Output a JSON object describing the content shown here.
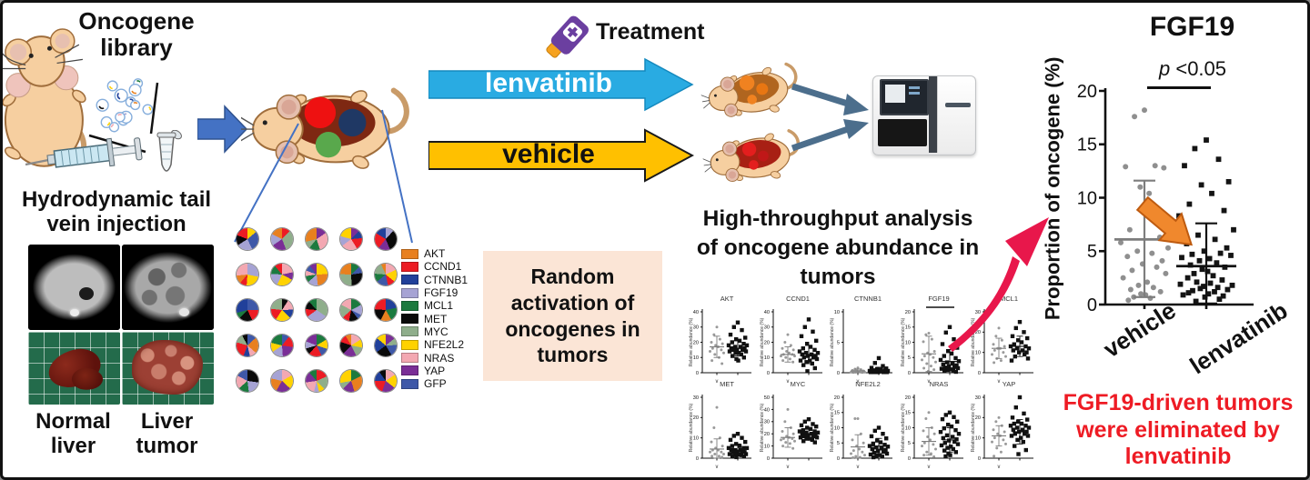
{
  "panel_left": {
    "oncogene_library": "Oncogene library",
    "hydrodynamic": "Hydrodynamic tail vein injection",
    "normal_liver": "Normal liver",
    "liver_tumor": "Liver tumor"
  },
  "treatment": {
    "label": "Treatment",
    "arm1": "lenvatinib",
    "arm2": "vehicle",
    "arm1_color": "#29ABE2",
    "arm2_color": "#FFC000"
  },
  "random_box": {
    "text": "Random activation of oncogenes in tumors"
  },
  "hta": {
    "text": "High-throughput analysis of oncogene abundance in tumors"
  },
  "conclusion": {
    "text": "FGF19-driven tumors were eliminated by lenvatinib",
    "color": "#EE1B24"
  },
  "legend": {
    "items": [
      {
        "label": "AKT",
        "color": "#E8801F"
      },
      {
        "label": "CCND1",
        "color": "#EC1C24"
      },
      {
        "label": "CTNNB1",
        "color": "#21409A"
      },
      {
        "label": "FGF19",
        "color": "#A6A3D4"
      },
      {
        "label": "MCL1",
        "color": "#1B7A3E"
      },
      {
        "label": "MET",
        "color": "#0A0A0A"
      },
      {
        "label": "MYC",
        "color": "#8FAE8B"
      },
      {
        "label": "NFE2L2",
        "color": "#FFD200"
      },
      {
        "label": "NRAS",
        "color": "#F3A8B2"
      },
      {
        "label": "YAP",
        "color": "#7A2E96"
      },
      {
        "label": "GFP",
        "color": "#3E58A8"
      }
    ]
  },
  "pie_grid": {
    "rows": 5,
    "cols": 5
  },
  "chart_data": [
    {
      "id": "fgf19_main",
      "type": "scatter",
      "title": "FGF19",
      "p_prefix": "p",
      "p_rest": " <0.05",
      "ylabel": "Proportion of oncogene (%)",
      "ylim": [
        0,
        20
      ],
      "yticks": [
        0,
        5,
        10,
        15,
        20
      ],
      "groups": [
        {
          "name": "vehicle",
          "marker": "circle",
          "color": "#8F8F8F",
          "mean": 6.1,
          "sd_high": 11.6,
          "sd_low": 0.7,
          "values": [
            18.2,
            17.6,
            13.0,
            12.9,
            12.8,
            11.0,
            10.4,
            7.0,
            6.3,
            5.8,
            5.3,
            5.0,
            4.8,
            4.5,
            4.1,
            3.8,
            3.5,
            3.2,
            2.9,
            2.5,
            2.1,
            1.8,
            1.6,
            1.4,
            1.2,
            1.0,
            0.9,
            0.7,
            0.6,
            0.4
          ]
        },
        {
          "name": "lenvatinib",
          "marker": "square",
          "color": "#141414",
          "mean": 3.6,
          "sd_high": 7.6,
          "sd_low": 0.1,
          "values": [
            15.4,
            14.6,
            13.6,
            13.0,
            11.5,
            11.2,
            10.4,
            9.4,
            8.8,
            8.3,
            7.0,
            6.5,
            6.1,
            5.7,
            5.3,
            5.0,
            4.8,
            4.7,
            4.6,
            4.4,
            4.3,
            4.1,
            3.9,
            3.7,
            3.5,
            3.3,
            3.1,
            2.9,
            2.7,
            2.5,
            2.3,
            2.1,
            2.0,
            1.9,
            1.8,
            1.7,
            1.6,
            1.5,
            1.4,
            1.3,
            1.2,
            1.1,
            1.0,
            0.9,
            0.8,
            0.7,
            0.5,
            0.3
          ]
        }
      ]
    },
    {
      "id": "oncogene_small_multiples",
      "type": "scatter_grid",
      "ylabel": "Relative abundance (%)",
      "group_names": [
        "vehicle",
        "lenvatinib"
      ],
      "plots": [
        {
          "name": "AKT",
          "ylim": [
            0,
            40
          ],
          "yticks": [
            0,
            10,
            20,
            30,
            40
          ],
          "vehicle": {
            "mean": 17,
            "sd": 7,
            "values": [
              30,
              25,
              22,
              20,
              19,
              18,
              17,
              16,
              15,
              14,
              13,
              12,
              10,
              8,
              6
            ]
          },
          "lenvatinib": {
            "mean": 16,
            "sd": 5,
            "values": [
              33,
              30,
              28,
              25,
              23,
              22,
              21,
              20,
              19,
              18,
              18,
              17,
              17,
              16,
              16,
              15,
              15,
              15,
              14,
              14,
              13,
              13,
              12,
              11,
              10,
              9,
              8
            ]
          }
        },
        {
          "name": "CCND1",
          "ylim": [
            0,
            40
          ],
          "yticks": [
            0,
            10,
            20,
            30,
            40
          ],
          "vehicle": {
            "mean": 12,
            "sd": 5,
            "values": [
              25,
              20,
              18,
              16,
              15,
              14,
              13,
              12,
              12,
              11,
              11,
              10,
              9,
              8,
              7
            ]
          },
          "lenvatinib": {
            "mean": 12,
            "sd": 6,
            "values": [
              35,
              30,
              27,
              24,
              21,
              19,
              17,
              16,
              15,
              14,
              13,
              13,
              12,
              12,
              11,
              11,
              10,
              10,
              9,
              8,
              8,
              7,
              6,
              5,
              3,
              1
            ]
          }
        },
        {
          "name": "CTNNB1",
          "ylim": [
            0,
            10
          ],
          "yticks": [
            0,
            5,
            10
          ],
          "vehicle": {
            "mean": 0.3,
            "sd": 0.3,
            "values": [
              0.8,
              0.6,
              0.5,
              0.4,
              0.3,
              0.3,
              0.2,
              0.2,
              0.2,
              0.1,
              0.1,
              0.1
            ]
          },
          "lenvatinib": {
            "mean": 0.4,
            "sd": 0.5,
            "values": [
              2.4,
              1.6,
              1.1,
              0.8,
              0.7,
              0.6,
              0.5,
              0.4,
              0.4,
              0.3,
              0.3,
              0.3,
              0.2,
              0.2,
              0.2,
              0.1,
              0.1,
              0.1,
              0.1,
              0.1
            ]
          }
        },
        {
          "name": "FGF19",
          "ylim": [
            0,
            20
          ],
          "yticks": [
            0,
            5,
            10,
            15,
            20
          ],
          "sig": true,
          "vehicle": {
            "mean": 6.2,
            "sd": 5.8,
            "values": [
              13,
              12.5,
              11,
              10.2,
              7,
              6.5,
              6,
              5.5,
              5,
              4.2,
              3.5,
              3,
              2.2,
              1.5,
              1,
              0.5
            ]
          },
          "lenvatinib": {
            "mean": 3.7,
            "sd": 3.9,
            "values": [
              15,
              13.2,
              11,
              9.4,
              8.2,
              7.1,
              6.3,
              5.5,
              4.8,
              4.2,
              3.8,
              3.4,
              3,
              2.7,
              2.4,
              2.1,
              1.9,
              1.7,
              1.5,
              1.3,
              1.1,
              0.9,
              0.7,
              0.5,
              0.3
            ]
          }
        },
        {
          "name": "MCL1",
          "ylim": [
            0,
            30
          ],
          "yticks": [
            0,
            10,
            20,
            30
          ],
          "vehicle": {
            "mean": 12,
            "sd": 5,
            "values": [
              22,
              18,
              16,
              14,
              13,
              12,
              12,
              11,
              10,
              9,
              8,
              7,
              6,
              5
            ]
          },
          "lenvatinib": {
            "mean": 13,
            "sd": 5,
            "values": [
              25,
              22,
              20,
              18,
              17,
              16,
              15,
              14,
              13,
              13,
              12,
              12,
              11,
              11,
              10,
              10,
              9,
              8,
              7,
              6
            ]
          }
        },
        {
          "name": "MET",
          "ylim": [
            0,
            30
          ],
          "yticks": [
            0,
            10,
            20,
            30
          ],
          "vehicle": {
            "mean": 4.5,
            "sd": 5,
            "values": [
              25,
              15,
              10,
              8,
              6,
              5,
              4,
              4,
              3,
              3,
              2,
              2,
              1,
              1,
              0.5
            ]
          },
          "lenvatinib": {
            "mean": 4,
            "sd": 3,
            "values": [
              12,
              11,
              10,
              9,
              8,
              7,
              6,
              6,
              5,
              5,
              5,
              4,
              4,
              4,
              3,
              3,
              3,
              3,
              2,
              2,
              2,
              2,
              1.5,
              1,
              0.8,
              0.5
            ]
          }
        },
        {
          "name": "MYC",
          "ylim": [
            0,
            50
          ],
          "yticks": [
            0,
            10,
            20,
            30,
            40,
            50
          ],
          "vehicle": {
            "mean": 17,
            "sd": 8,
            "values": [
              40,
              30,
              25,
              22,
              20,
              18,
              17,
              16,
              16,
              15,
              14,
              13,
              12,
              10,
              8
            ]
          },
          "lenvatinib": {
            "mean": 20,
            "sd": 5,
            "values": [
              32,
              30,
              28,
              27,
              26,
              25,
              24,
              23,
              22,
              22,
              21,
              21,
              20,
              20,
              19,
              19,
              18,
              18,
              17,
              17,
              16,
              16,
              15,
              14,
              13
            ]
          }
        },
        {
          "name": "NFE2L2",
          "ylim": [
            0,
            20
          ],
          "yticks": [
            0,
            5,
            10,
            15,
            20
          ],
          "vehicle": {
            "mean": 3.7,
            "sd": 4,
            "values": [
              13,
              13,
              8,
              6,
              5,
              4,
              3,
              2.5,
              2,
              1.5,
              1,
              0.6,
              0.3,
              0.2
            ]
          },
          "lenvatinib": {
            "mean": 4,
            "sd": 2.5,
            "values": [
              10,
              9,
              8,
              7.2,
              6.5,
              5.8,
              5.2,
              4.8,
              4.4,
              4,
              3.8,
              3.5,
              3.2,
              3,
              2.7,
              2.4,
              2.1,
              1.8,
              1.5,
              1.2,
              1,
              0.8,
              0.5,
              0.3
            ]
          }
        },
        {
          "name": "NRAS",
          "ylim": [
            0,
            20
          ],
          "yticks": [
            0,
            5,
            10,
            15,
            20
          ],
          "vehicle": {
            "mean": 5.5,
            "sd": 4.5,
            "values": [
              15,
              13,
              10,
              9,
              8,
              7,
              6,
              5,
              4.5,
              4,
              3,
              2,
              1.5,
              1,
              0.5
            ]
          },
          "lenvatinib": {
            "mean": 6,
            "sd": 4,
            "values": [
              15,
              14.2,
              13.5,
              12.8,
              12,
              11,
              10.4,
              9.8,
              9.2,
              8.6,
              8,
              7.5,
              7,
              6.6,
              6.2,
              5.8,
              5.4,
              5,
              4.6,
              4.2,
              3.8,
              3.4,
              3,
              2.5,
              2,
              1.5,
              1,
              0.6
            ]
          }
        },
        {
          "name": "YAP",
          "ylim": [
            0,
            30
          ],
          "yticks": [
            0,
            10,
            20,
            30
          ],
          "vehicle": {
            "mean": 11,
            "sd": 5,
            "values": [
              20,
              18,
              16,
              14,
              13,
              12,
              11,
              10,
              9,
              8,
              7,
              5,
              3,
              1
            ]
          },
          "lenvatinib": {
            "mean": 13,
            "sd": 6,
            "values": [
              30,
              25,
              22,
              20,
              19,
              18,
              17,
              17,
              16,
              16,
              15,
              15,
              14,
              14,
              13,
              13,
              12,
              12,
              11,
              11,
              10,
              9,
              8,
              6,
              4,
              2
            ]
          }
        }
      ]
    }
  ],
  "illustration_colors": {
    "mouse_body": "#F6CFA0",
    "mouse_outline": "#A06E3C",
    "liver_middle": "#7E2812",
    "tumor_red": "#EE1111",
    "tumor_navy": "#1F3864",
    "tumor_green": "#59A84C",
    "treated_orange": "#F08220",
    "vehicle_red": "#E31E1E",
    "big_arrow_blue": "#4472C4",
    "steel_arrow": "#4C6E8C",
    "red_curve_arrow": "#E8174B",
    "orange_plot_arrow": "#F0882D"
  }
}
